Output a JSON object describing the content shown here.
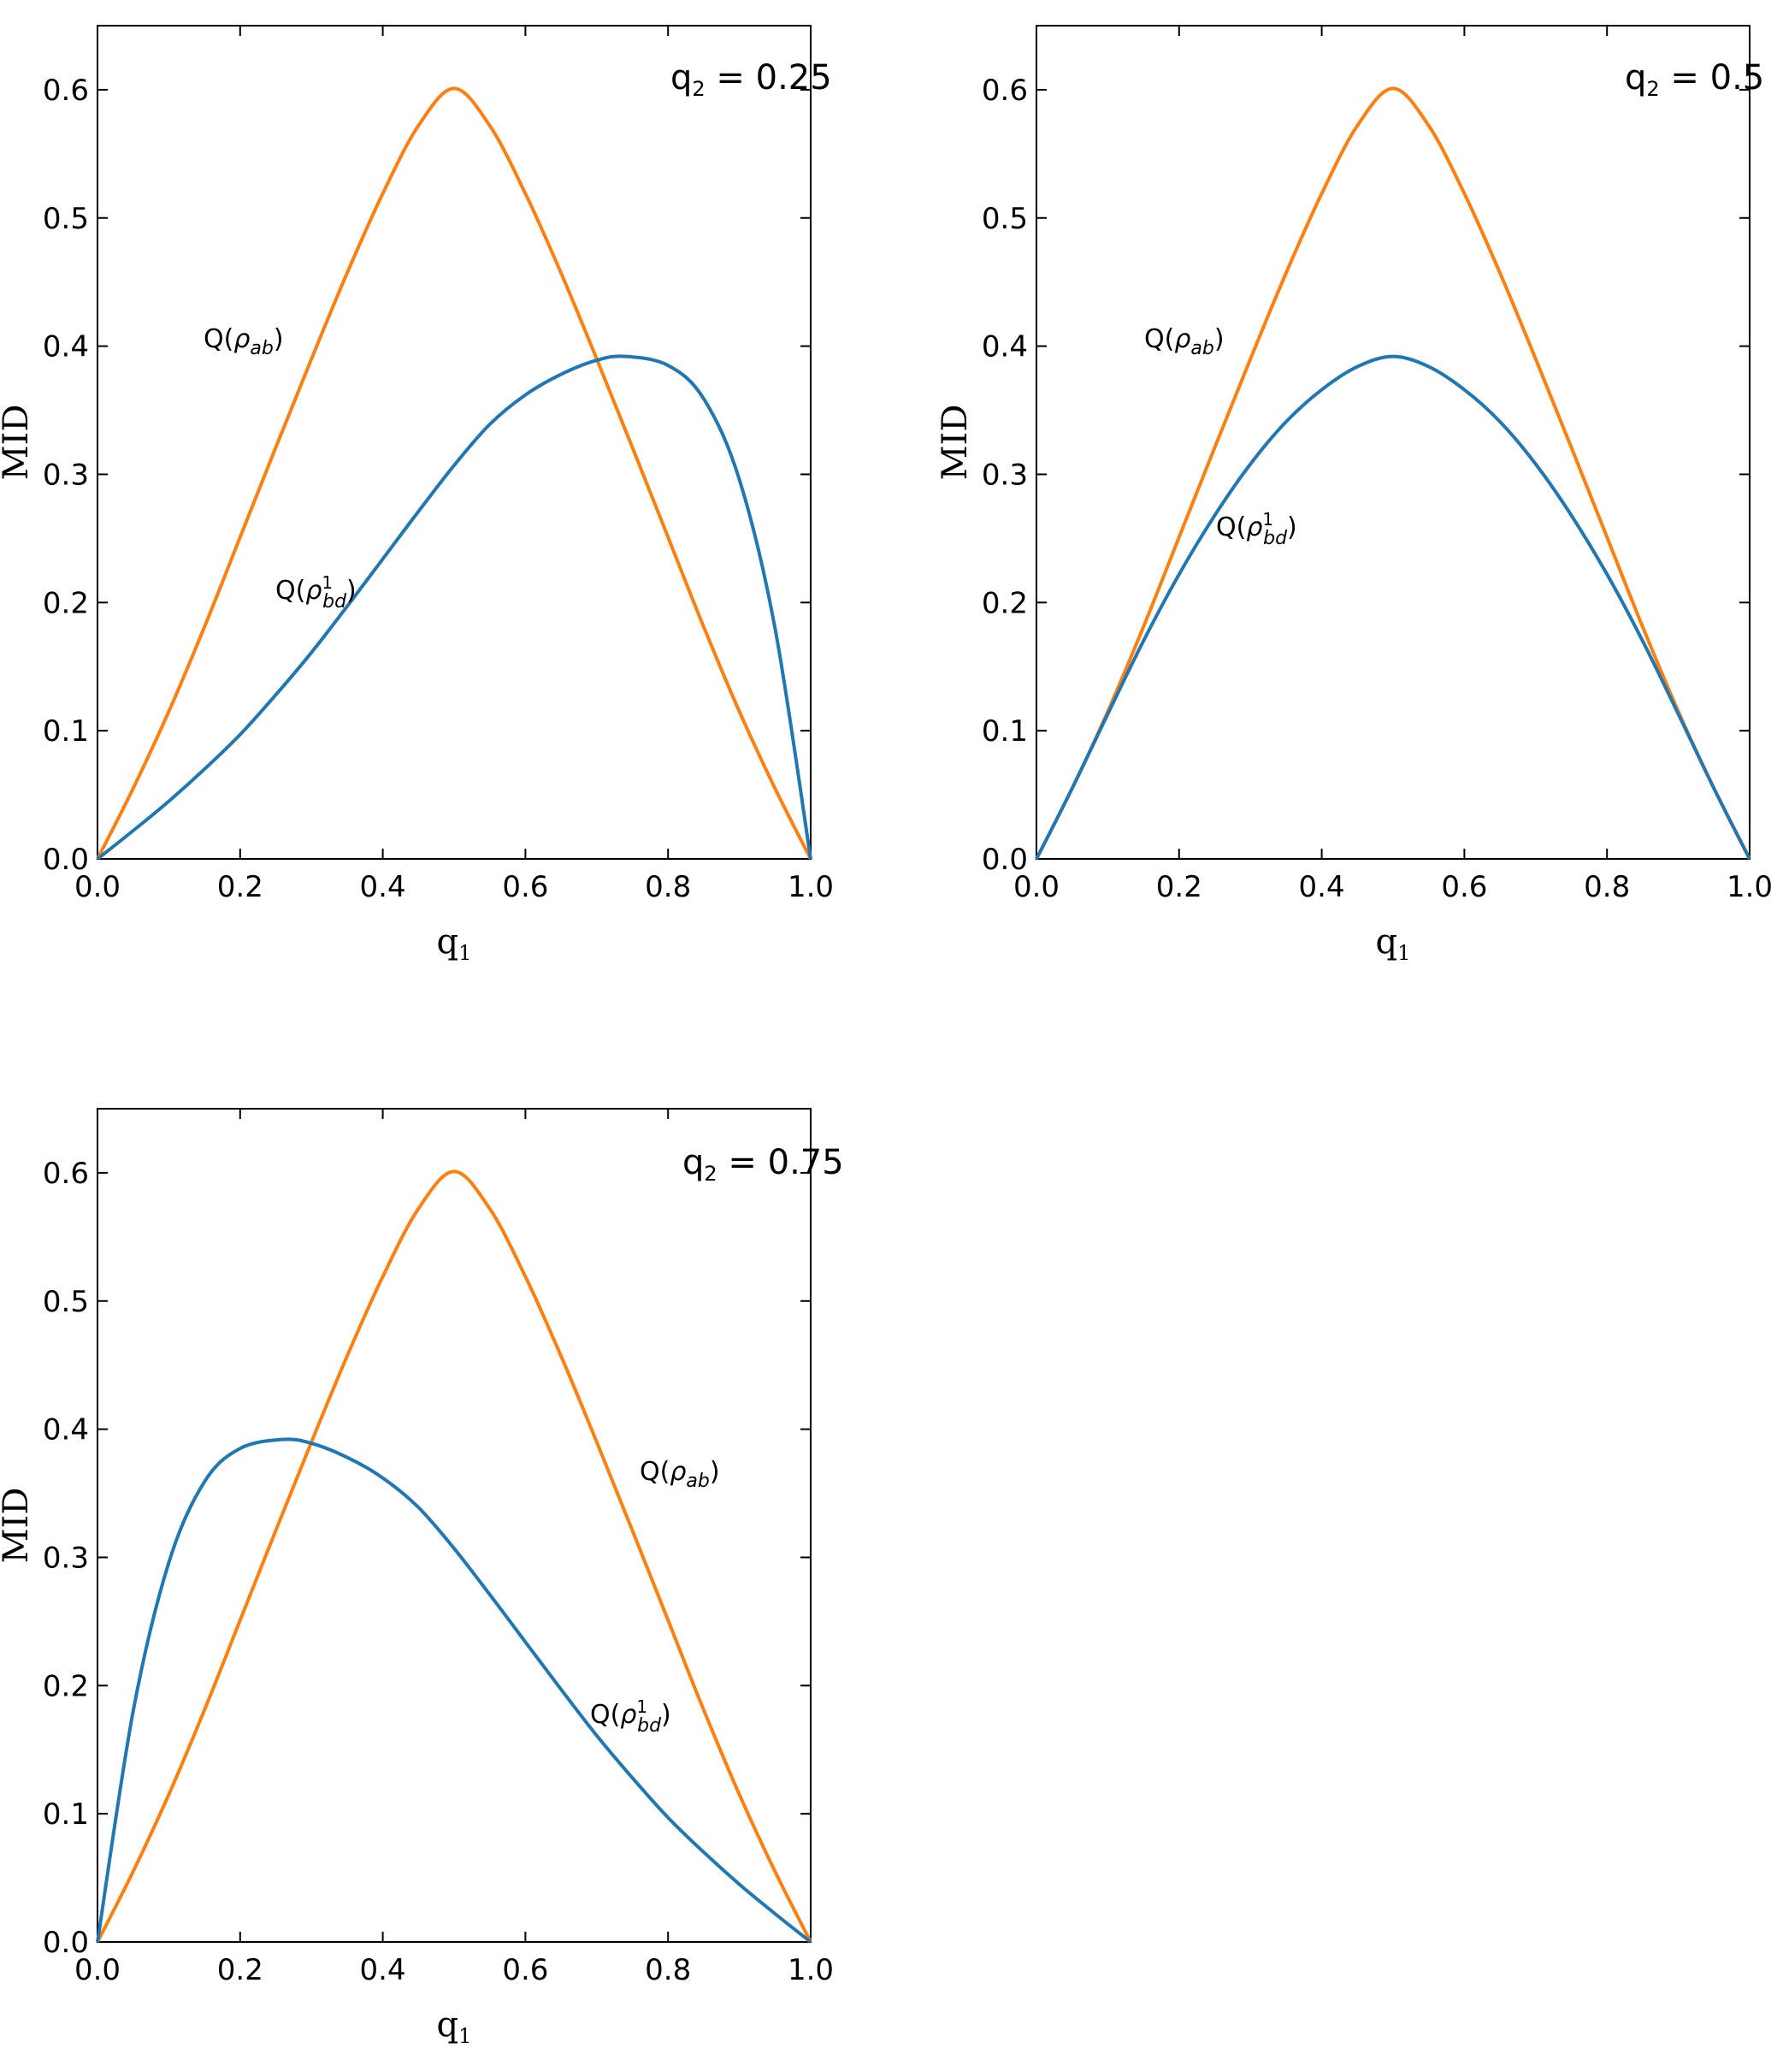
{
  "colors": {
    "Q_ab": "#ff7f0e",
    "Q_bd": "#1f77b4",
    "axes": "#000000"
  },
  "chart_data": [
    {
      "type": "line",
      "annotation": {
        "lhs": "q",
        "sub": "2",
        "eq": " = 0.25"
      },
      "xlabel": {
        "base": "q",
        "sub": "1"
      },
      "ylabel": "MID",
      "xlim": [
        0,
        1
      ],
      "ylim": [
        0,
        0.65
      ],
      "xticks": [
        "0.0",
        "0.2",
        "0.4",
        "0.6",
        "0.8",
        "1.0"
      ],
      "yticks": [
        "0.0",
        "0.1",
        "0.2",
        "0.3",
        "0.4",
        "0.5",
        "0.6"
      ],
      "series": [
        {
          "key": "Q_ab",
          "label": {
            "text": "Q(",
            "rho": "ρ",
            "sub": "ab",
            "sup": "",
            "close": ")"
          },
          "x": [
            0,
            0.05,
            0.1,
            0.15,
            0.2,
            0.25,
            0.3,
            0.35,
            0.4,
            0.45,
            0.5,
            0.55,
            0.6,
            0.65,
            0.7,
            0.75,
            0.8,
            0.85,
            0.9,
            0.95,
            1.0
          ],
          "y": [
            0,
            0.055,
            0.115,
            0.181,
            0.251,
            0.321,
            0.39,
            0.457,
            0.519,
            0.572,
            0.601,
            0.572,
            0.519,
            0.457,
            0.39,
            0.321,
            0.251,
            0.181,
            0.115,
            0.055,
            0
          ]
        },
        {
          "key": "Q_bd",
          "label": {
            "text": "Q(",
            "rho": "ρ",
            "sub": "bd",
            "sup": "1",
            "close": ")"
          },
          "x": [
            0,
            0.05,
            0.1,
            0.15,
            0.2,
            0.25,
            0.3,
            0.35,
            0.4,
            0.45,
            0.5,
            0.55,
            0.6,
            0.65,
            0.7,
            0.74,
            0.8,
            0.85,
            0.9,
            0.95,
            1.0
          ],
          "y": [
            0,
            0.022,
            0.045,
            0.07,
            0.097,
            0.128,
            0.161,
            0.197,
            0.234,
            0.271,
            0.307,
            0.339,
            0.362,
            0.378,
            0.389,
            0.392,
            0.385,
            0.359,
            0.296,
            0.18,
            0
          ]
        }
      ]
    },
    {
      "type": "line",
      "annotation": {
        "lhs": "q",
        "sub": "2",
        "eq": " = 0.5"
      },
      "xlabel": {
        "base": "q",
        "sub": "1"
      },
      "ylabel": "MID",
      "xlim": [
        0,
        1
      ],
      "ylim": [
        0,
        0.65
      ],
      "xticks": [
        "0.0",
        "0.2",
        "0.4",
        "0.6",
        "0.8",
        "1.0"
      ],
      "yticks": [
        "0.0",
        "0.1",
        "0.2",
        "0.3",
        "0.4",
        "0.5",
        "0.6"
      ],
      "series": [
        {
          "key": "Q_ab",
          "label": {
            "text": "Q(",
            "rho": "ρ",
            "sub": "ab",
            "sup": "",
            "close": ")"
          },
          "x": [
            0,
            0.05,
            0.1,
            0.15,
            0.2,
            0.25,
            0.3,
            0.35,
            0.4,
            0.45,
            0.5,
            0.55,
            0.6,
            0.65,
            0.7,
            0.75,
            0.8,
            0.85,
            0.9,
            0.95,
            1.0
          ],
          "y": [
            0,
            0.055,
            0.115,
            0.181,
            0.251,
            0.321,
            0.39,
            0.457,
            0.519,
            0.572,
            0.601,
            0.572,
            0.519,
            0.457,
            0.39,
            0.321,
            0.251,
            0.181,
            0.115,
            0.055,
            0
          ]
        },
        {
          "key": "Q_bd",
          "label": {
            "text": "Q(",
            "rho": "ρ",
            "sub": "bd",
            "sup": "1",
            "close": ")"
          },
          "x": [
            0,
            0.05,
            0.1,
            0.15,
            0.2,
            0.25,
            0.3,
            0.35,
            0.4,
            0.45,
            0.5,
            0.55,
            0.6,
            0.65,
            0.7,
            0.75,
            0.8,
            0.85,
            0.9,
            0.95,
            1.0
          ],
          "y": [
            0,
            0.055,
            0.113,
            0.17,
            0.222,
            0.268,
            0.308,
            0.341,
            0.366,
            0.384,
            0.392,
            0.384,
            0.366,
            0.341,
            0.308,
            0.268,
            0.222,
            0.17,
            0.113,
            0.055,
            0
          ]
        }
      ]
    },
    {
      "type": "line",
      "annotation": {
        "lhs": "q",
        "sub": "2",
        "eq": " = 0.75"
      },
      "xlabel": {
        "base": "q",
        "sub": "1"
      },
      "ylabel": "MID",
      "xlim": [
        0,
        1
      ],
      "ylim": [
        0,
        0.65
      ],
      "xticks": [
        "0.0",
        "0.2",
        "0.4",
        "0.6",
        "0.8",
        "1.0"
      ],
      "yticks": [
        "0.0",
        "0.1",
        "0.2",
        "0.3",
        "0.4",
        "0.5",
        "0.6"
      ],
      "series": [
        {
          "key": "Q_ab",
          "label": {
            "text": "Q(",
            "rho": "ρ",
            "sub": "ab",
            "sup": "",
            "close": ")"
          },
          "x": [
            0,
            0.05,
            0.1,
            0.15,
            0.2,
            0.25,
            0.3,
            0.35,
            0.4,
            0.45,
            0.5,
            0.55,
            0.6,
            0.65,
            0.7,
            0.75,
            0.8,
            0.85,
            0.9,
            0.95,
            1.0
          ],
          "y": [
            0,
            0.055,
            0.115,
            0.181,
            0.251,
            0.321,
            0.39,
            0.457,
            0.519,
            0.572,
            0.601,
            0.572,
            0.519,
            0.457,
            0.39,
            0.321,
            0.251,
            0.181,
            0.115,
            0.055,
            0
          ]
        },
        {
          "key": "Q_bd",
          "label": {
            "text": "Q(",
            "rho": "ρ",
            "sub": "bd",
            "sup": "1",
            "close": ")"
          },
          "x": [
            0,
            0.05,
            0.1,
            0.15,
            0.2,
            0.26,
            0.3,
            0.35,
            0.4,
            0.45,
            0.5,
            0.55,
            0.6,
            0.65,
            0.7,
            0.75,
            0.8,
            0.85,
            0.9,
            0.95,
            1.0
          ],
          "y": [
            0,
            0.18,
            0.296,
            0.359,
            0.385,
            0.392,
            0.389,
            0.378,
            0.362,
            0.339,
            0.307,
            0.271,
            0.234,
            0.197,
            0.161,
            0.128,
            0.097,
            0.07,
            0.045,
            0.022,
            0
          ]
        }
      ]
    }
  ]
}
